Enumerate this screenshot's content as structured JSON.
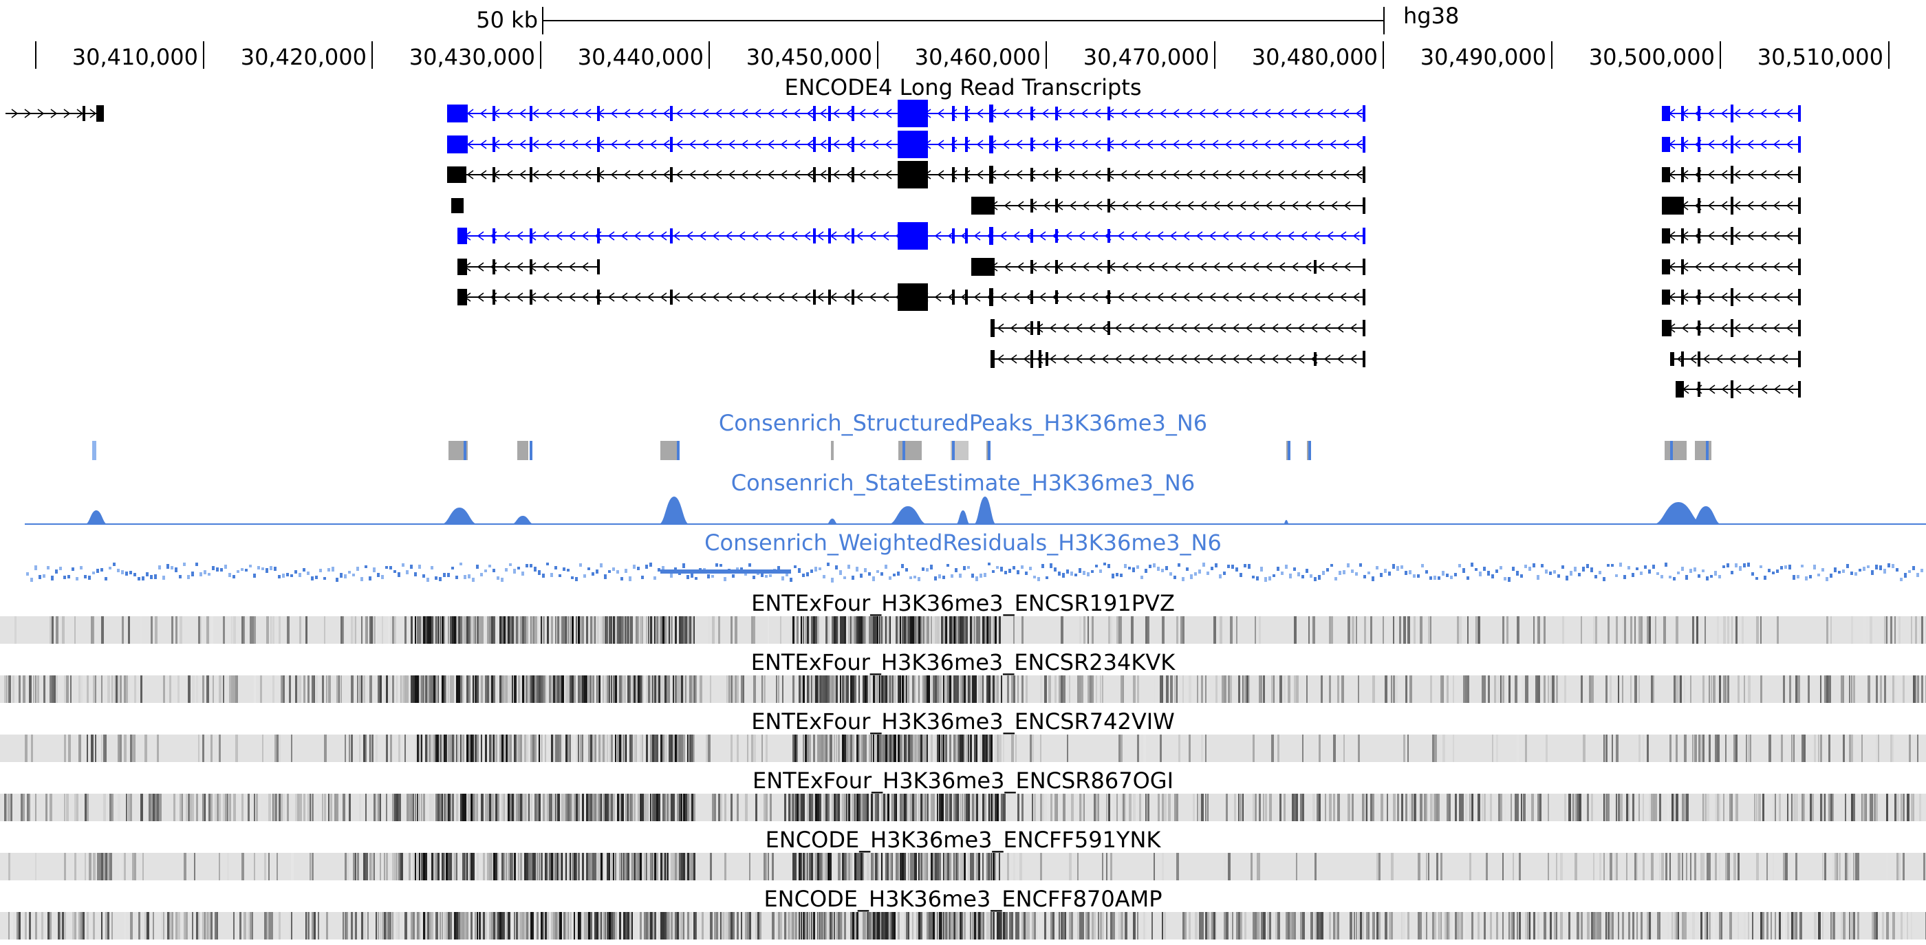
{
  "scale_bar": {
    "label": "50 kb",
    "assembly": "hg38"
  },
  "ruler": {
    "ticks": [
      "30,410,000",
      "30,420,000",
      "30,430,000",
      "30,440,000",
      "30,450,000",
      "30,460,000",
      "30,470,000",
      "30,480,000",
      "30,490,000",
      "30,500,000",
      "30,510,000"
    ]
  },
  "colors": {
    "transcript_highlight": "#0000ff",
    "transcript_default": "#000000",
    "consenrich": "#4a7fd9",
    "consenrich_light": "#8fb4ee",
    "density_background": "#e2e2e2"
  },
  "tracks": {
    "long_reads": {
      "title": "ENCODE4 Long Read Transcripts"
    },
    "peaks": {
      "title": "Consenrich_StructuredPeaks_H3K36me3_N6"
    },
    "state": {
      "title": "Consenrich_StateEstimate_H3K36me3_N6"
    },
    "residuals": {
      "title": "Consenrich_WeightedResiduals_H3K36me3_N6"
    },
    "signals": [
      {
        "title": "ENTExFour_H3K36me3_ENCSR191PVZ"
      },
      {
        "title": "ENTExFour_H3K36me3_ENCSR234KVK"
      },
      {
        "title": "ENTExFour_H3K36me3_ENCSR742VIW"
      },
      {
        "title": "ENTExFour_H3K36me3_ENCSR867OGI"
      },
      {
        "title": "ENCODE_H3K36me3_ENCFF591YNK"
      },
      {
        "title": "ENCODE_H3K36me3_ENCFF870AMP"
      }
    ]
  }
}
